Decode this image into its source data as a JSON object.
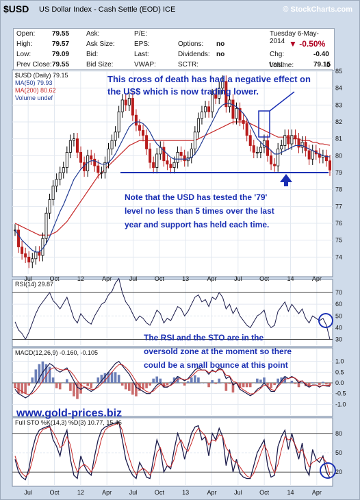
{
  "header": {
    "symbol": "$USD",
    "subtitle": "US Dollar Index - Cash Settle (EOD)  ICE",
    "brand": "© StockCharts.com",
    "date": "Tuesday 6-May-2014",
    "change_pct": "-0.50%"
  },
  "stats": {
    "open_label": "Open:",
    "open_value": "79.55",
    "high_label": "High:",
    "high_value": "79.57",
    "low_label": "Low:",
    "low_value": "79.09",
    "prev_label": "Prev Close:",
    "prev_value": "79.55",
    "ask_label": "Ask:",
    "ask_size_label": "Ask Size:",
    "bid_label": "Bid:",
    "bid_size_label": "Bid Size:",
    "pe_label": "P/E:",
    "eps_label": "EPS:",
    "last_label": "Last:",
    "vwap_label": "VWAP:",
    "options_label": "Options:",
    "options_value": "no",
    "dividends_label": "Dividends:",
    "dividends_value": "no",
    "sctr_label": "SCTR:",
    "chg_label": "Chg:",
    "chg_value": "-0.40",
    "last2_label": "Last:",
    "last2_value": "79.15",
    "volume_label": "Volume:",
    "volume_value": "0"
  },
  "colors": {
    "background": "#cfdbea",
    "panel": "#ffffff",
    "up": "#000000",
    "down": "#b71c1c",
    "ma50": "#1f3a93",
    "ma200": "#c62828",
    "annotation": "#1a2fb3",
    "support": "#1a2fb3"
  },
  "watermark": "www.gold-prices.biz",
  "chart_data": [
    {
      "type": "candlestick",
      "legend": {
        "series_label": "$USD (Daily) 79.15",
        "ma50_label": "MA(50) 79.93",
        "ma200_label": "MA(200) 80.62",
        "volume_label": "Volume undef"
      },
      "ylim": [
        73,
        85
      ],
      "yticks": [
        "74",
        "75",
        "76",
        "77",
        "78",
        "79",
        "80",
        "81",
        "82",
        "83",
        "84",
        "85"
      ],
      "xticks": [
        "Jul",
        "Oct",
        "12",
        "Apr",
        "Jul",
        "Oct",
        "13",
        "Apr",
        "Jul",
        "Oct",
        "14",
        "Apr"
      ],
      "close": [
        75.6,
        74.6,
        74.2,
        74.0,
        73.7,
        73.9,
        74.3,
        74.1,
        75.1,
        76.6,
        77.4,
        78.2,
        78.6,
        79.0,
        79.3,
        80.2,
        80.9,
        81.0,
        80.2,
        79.6,
        79.1,
        80.0,
        79.8,
        79.4,
        79.0,
        79.0,
        79.6,
        80.4,
        80.9,
        81.4,
        82.6,
        83.3,
        83.0,
        83.4,
        82.4,
        81.8,
        81.5,
        81.2,
        80.4,
        79.6,
        79.3,
        80.1,
        80.5,
        79.7,
        79.5,
        79.3,
        79.6,
        80.2,
        80.0,
        79.7,
        79.9,
        80.4,
        81.4,
        82.2,
        82.6,
        82.9,
        82.6,
        83.6,
        83.4,
        84.0,
        84.4,
        82.9,
        83.3,
        82.2,
        82.8,
        82.1,
        81.9,
        81.2,
        80.6,
        80.2,
        80.2,
        80.5,
        80.9,
        80.0,
        79.5,
        79.4,
        80.4,
        80.6,
        81.2,
        80.7,
        81.2,
        81.0,
        80.5,
        80.8,
        80.3,
        79.8,
        80.3,
        80.1,
        79.9,
        80.0,
        79.7,
        79.15
      ],
      "ma50": [
        75.6,
        75.3,
        75.0,
        74.8,
        74.6,
        74.4,
        74.3,
        74.3,
        74.5,
        74.8,
        75.2,
        75.7,
        76.2,
        76.7,
        77.1,
        77.6,
        78.1,
        78.6,
        78.9,
        79.2,
        79.4,
        79.6,
        79.7,
        79.7,
        79.6,
        79.5,
        79.5,
        79.6,
        79.8,
        80.1,
        80.5,
        80.9,
        81.3,
        81.7,
        81.9,
        82.0,
        82.0,
        81.9,
        81.7,
        81.4,
        81.0,
        80.7,
        80.5,
        80.3,
        80.1,
        79.9,
        79.8,
        79.8,
        79.8,
        79.8,
        79.8,
        79.9,
        80.1,
        80.4,
        80.8,
        81.2,
        81.6,
        82.0,
        82.4,
        82.8,
        83.0,
        83.1,
        83.1,
        83.0,
        82.9,
        82.7,
        82.5,
        82.2,
        81.8,
        81.4,
        81.0,
        80.8,
        80.6,
        80.5,
        80.3,
        80.1,
        80.1,
        80.2,
        80.3,
        80.4,
        80.5,
        80.6,
        80.6,
        80.6,
        80.5,
        80.4,
        80.3,
        80.2,
        80.1,
        80.0,
        79.95,
        79.93
      ],
      "ma200": [
        76.0,
        75.9,
        75.8,
        75.7,
        75.6,
        75.5,
        75.4,
        75.3,
        75.3,
        75.3,
        75.3,
        75.4,
        75.5,
        75.7,
        75.9,
        76.1,
        76.4,
        76.7,
        77.0,
        77.3,
        77.6,
        77.9,
        78.2,
        78.5,
        78.8,
        79.0,
        79.2,
        79.4,
        79.6,
        79.8,
        80.0,
        80.2,
        80.4,
        80.6,
        80.7,
        80.8,
        80.9,
        80.9,
        80.9,
        80.9,
        80.9,
        80.9,
        80.9,
        80.9,
        80.9,
        80.9,
        80.9,
        80.9,
        80.9,
        80.9,
        80.9,
        80.9,
        80.9,
        81.0,
        81.1,
        81.2,
        81.3,
        81.4,
        81.5,
        81.6,
        81.7,
        81.8,
        81.9,
        82.0,
        82.0,
        82.0,
        82.0,
        82.0,
        81.9,
        81.8,
        81.7,
        81.6,
        81.5,
        81.4,
        81.3,
        81.2,
        81.1,
        81.1,
        81.1,
        81.1,
        81.0,
        81.0,
        81.0,
        80.9,
        80.9,
        80.9,
        80.8,
        80.8,
        80.7,
        80.7,
        80.65,
        80.62
      ],
      "support_level": 79,
      "annotations": [
        "This cross of death has had a negative effect on the US$ which is now trading lower.",
        "Note that the USD has tested the '79' level no less than 5 times over the last year and support has held each time."
      ]
    },
    {
      "type": "line",
      "label": "RSI(14) 29.87",
      "ylim": [
        25,
        80
      ],
      "yticks": [
        "30",
        "40",
        "50",
        "60",
        "70"
      ],
      "values": [
        45,
        38,
        35,
        30,
        36,
        44,
        52,
        58,
        62,
        66,
        70,
        63,
        60,
        56,
        61,
        66,
        57,
        48,
        44,
        52,
        48,
        45,
        43,
        50,
        55,
        60,
        62,
        68,
        71,
        78,
        82,
        70,
        62,
        58,
        52,
        46,
        50,
        48,
        44,
        42,
        48,
        55,
        52,
        44,
        48,
        46,
        52,
        58,
        56,
        50,
        54,
        60,
        66,
        68,
        62,
        64,
        58,
        66,
        64,
        70,
        66,
        56,
        60,
        52,
        57,
        50,
        46,
        42,
        40,
        45,
        50,
        52,
        55,
        44,
        40,
        42,
        54,
        58,
        62,
        54,
        60,
        56,
        52,
        56,
        48,
        44,
        50,
        48,
        46,
        48,
        42,
        30
      ],
      "annotation": "The RSI and the STO are in the oversold zone at the moment so there could be a small bounce at this point"
    },
    {
      "type": "line",
      "label": "MACD(12,26,9) -0.160, -0.105",
      "ylim": [
        -1.5,
        1.5
      ],
      "yticks": [
        "-1.0",
        "-0.5",
        "0.0",
        "0.5",
        "1.0"
      ],
      "macd": [
        -0.3,
        -0.5,
        -0.6,
        -0.7,
        -0.6,
        -0.4,
        -0.1,
        0.2,
        0.5,
        0.7,
        0.9,
        0.8,
        0.6,
        0.5,
        0.6,
        0.7,
        0.4,
        0.1,
        -0.2,
        -0.3,
        -0.2,
        -0.3,
        -0.4,
        -0.3,
        -0.1,
        0.1,
        0.3,
        0.5,
        0.7,
        0.9,
        1.0,
        0.8,
        0.6,
        0.4,
        0.1,
        -0.2,
        -0.3,
        -0.4,
        -0.5,
        -0.5,
        -0.3,
        -0.1,
        0.0,
        -0.2,
        -0.2,
        -0.1,
        0.1,
        0.3,
        0.2,
        0.1,
        0.2,
        0.4,
        0.6,
        0.7,
        0.6,
        0.6,
        0.4,
        0.6,
        0.5,
        0.7,
        0.6,
        0.2,
        0.3,
        -0.1,
        0.0,
        -0.3,
        -0.4,
        -0.5,
        -0.6,
        -0.5,
        -0.3,
        -0.2,
        0.0,
        -0.2,
        -0.4,
        -0.4,
        -0.1,
        0.1,
        0.3,
        0.2,
        0.3,
        0.2,
        0.0,
        0.1,
        -0.1,
        -0.2,
        -0.1,
        -0.1,
        -0.2,
        -0.1,
        -0.15,
        -0.16
      ],
      "signal": [
        -0.2,
        -0.3,
        -0.4,
        -0.5,
        -0.55,
        -0.5,
        -0.35,
        -0.15,
        0.1,
        0.35,
        0.6,
        0.7,
        0.7,
        0.62,
        0.6,
        0.63,
        0.55,
        0.35,
        0.1,
        -0.1,
        -0.18,
        -0.24,
        -0.3,
        -0.3,
        -0.2,
        -0.05,
        0.12,
        0.3,
        0.5,
        0.7,
        0.85,
        0.85,
        0.72,
        0.55,
        0.32,
        0.05,
        -0.15,
        -0.28,
        -0.4,
        -0.45,
        -0.38,
        -0.22,
        -0.08,
        -0.12,
        -0.16,
        -0.12,
        0.0,
        0.18,
        0.2,
        0.15,
        0.17,
        0.3,
        0.46,
        0.6,
        0.6,
        0.6,
        0.48,
        0.55,
        0.52,
        0.62,
        0.6,
        0.35,
        0.32,
        0.08,
        0.02,
        -0.2,
        -0.32,
        -0.42,
        -0.52,
        -0.5,
        -0.38,
        -0.26,
        -0.1,
        -0.15,
        -0.3,
        -0.36,
        -0.18,
        0.0,
        0.18,
        0.2,
        0.26,
        0.22,
        0.08,
        0.09,
        -0.04,
        -0.14,
        -0.11,
        -0.1,
        -0.16,
        -0.12,
        -0.12,
        -0.105
      ]
    },
    {
      "type": "line",
      "label": "Full STO %K(14,3) %D(3) 10.77, 15.46",
      "ylim": [
        0,
        100
      ],
      "yticks": [
        "20",
        "50",
        "80"
      ],
      "k": [
        40,
        20,
        12,
        8,
        25,
        55,
        75,
        85,
        88,
        90,
        92,
        70,
        60,
        45,
        72,
        85,
        40,
        15,
        10,
        45,
        30,
        20,
        15,
        45,
        70,
        85,
        90,
        92,
        95,
        96,
        98,
        70,
        40,
        25,
        15,
        10,
        35,
        25,
        12,
        10,
        40,
        70,
        55,
        20,
        30,
        25,
        55,
        80,
        65,
        40,
        60,
        80,
        90,
        92,
        70,
        75,
        45,
        80,
        70,
        88,
        75,
        30,
        55,
        20,
        40,
        18,
        12,
        10,
        10,
        30,
        50,
        60,
        70,
        30,
        12,
        15,
        60,
        75,
        85,
        55,
        80,
        60,
        40,
        65,
        25,
        15,
        55,
        40,
        35,
        45,
        20,
        10.77
      ],
      "d": [
        45,
        28,
        18,
        13,
        18,
        38,
        60,
        78,
        86,
        88,
        90,
        82,
        72,
        58,
        62,
        75,
        62,
        35,
        20,
        28,
        32,
        28,
        20,
        30,
        50,
        72,
        85,
        90,
        92,
        94,
        96,
        85,
        62,
        42,
        26,
        16,
        22,
        26,
        22,
        15,
        25,
        50,
        58,
        42,
        30,
        28,
        40,
        62,
        70,
        58,
        52,
        65,
        80,
        88,
        82,
        76,
        62,
        70,
        68,
        78,
        76,
        58,
        50,
        38,
        35,
        28,
        20,
        14,
        11,
        18,
        32,
        48,
        62,
        52,
        32,
        18,
        32,
        55,
        75,
        70,
        72,
        62,
        50,
        55,
        42,
        28,
        35,
        38,
        42,
        42,
        35,
        15.46
      ]
    }
  ]
}
